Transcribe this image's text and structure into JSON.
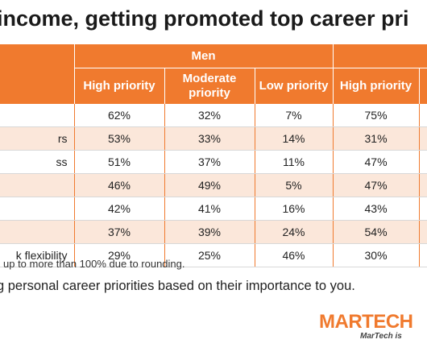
{
  "title": "income, getting promoted top career pri",
  "footnote": "up to more than 100% due to rounding.",
  "question": "g personal career priorities based on their importance to you.",
  "logo": {
    "brand": "MARTECH",
    "tagline": "MarTech is"
  },
  "colors": {
    "header": "#f07a2e",
    "stripe": "#fbe7da"
  },
  "chart_data": {
    "type": "table",
    "groups": [
      "Men",
      ""
    ],
    "columns": [
      "High priority",
      "Moderate priority",
      "Low priority",
      "High priority",
      ""
    ],
    "rows": [
      {
        "label": "",
        "values": [
          "62%",
          "32%",
          "7%",
          "75%",
          ""
        ]
      },
      {
        "label": "rs",
        "values": [
          "53%",
          "33%",
          "14%",
          "31%",
          ""
        ]
      },
      {
        "label": "ss",
        "values": [
          "51%",
          "37%",
          "11%",
          "47%",
          ""
        ]
      },
      {
        "label": "",
        "values": [
          "46%",
          "49%",
          "5%",
          "47%",
          ""
        ]
      },
      {
        "label": "",
        "values": [
          "42%",
          "41%",
          "16%",
          "43%",
          ""
        ]
      },
      {
        "label": "",
        "values": [
          "37%",
          "39%",
          "24%",
          "54%",
          ""
        ]
      },
      {
        "label": "k flexibility",
        "values": [
          "29%",
          "25%",
          "46%",
          "30%",
          ""
        ]
      }
    ]
  }
}
